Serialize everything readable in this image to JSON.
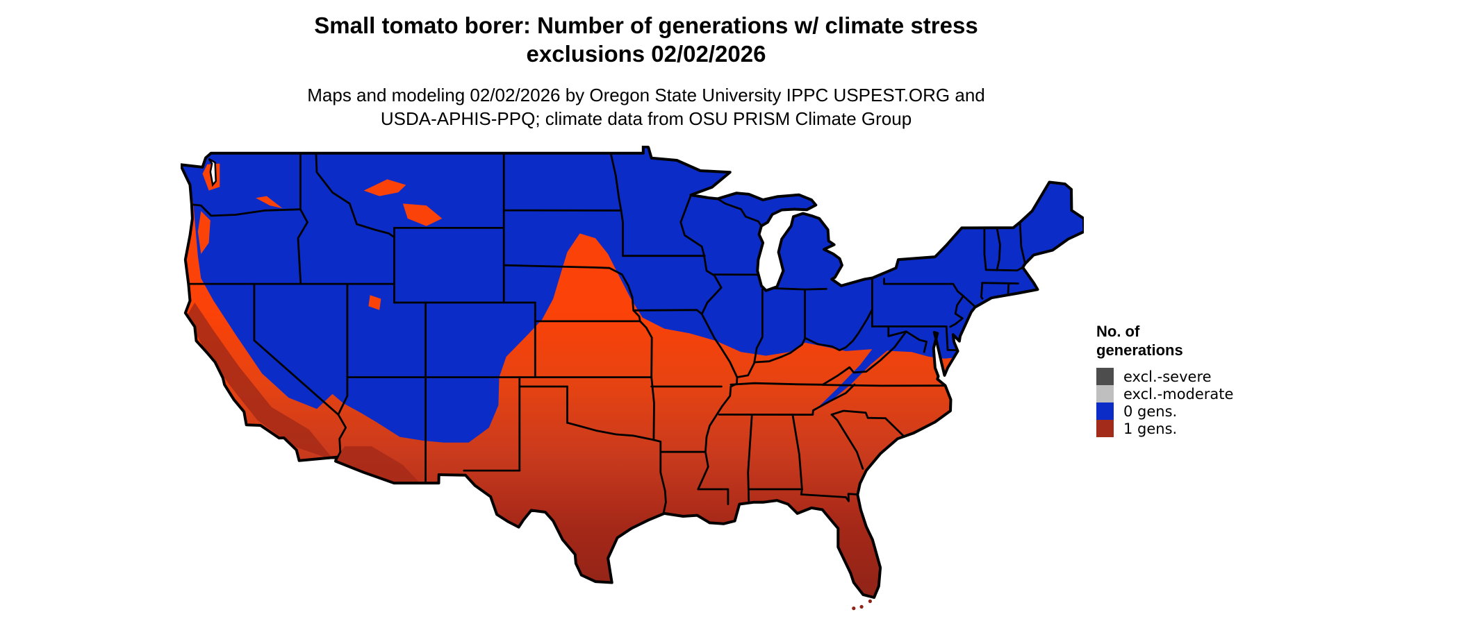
{
  "title": {
    "line1": "Small tomato borer: Number of generations w/ climate stress",
    "line2": "exclusions 02/02/2026"
  },
  "subtitle": {
    "line1": "Maps and modeling 02/02/2026 by Oregon State University IPPC USPEST.ORG and",
    "line2": "USDA-APHIS-PPQ; climate data from OSU PRISM Climate Group"
  },
  "legend": {
    "title_line1": "No. of",
    "title_line2": "generations",
    "items": [
      {
        "label": "excl.-severe",
        "color": "#4d4d4d"
      },
      {
        "label": "excl.-moderate",
        "color": "#bfbfbf"
      },
      {
        "label": "0 gens.",
        "color": "#0b2cc7"
      },
      {
        "label": "1 gens.",
        "color": "#a32b1a"
      }
    ]
  },
  "map_palette": {
    "zero_gens_blue": "#0b2cc7",
    "one_gen_orange": "#fb4208",
    "one_gen_mid": "#c93a1d",
    "one_gen_dark": "#8f2318",
    "coast_red": "#a62a18",
    "state_border": "#000000",
    "water": "#ffffff"
  }
}
